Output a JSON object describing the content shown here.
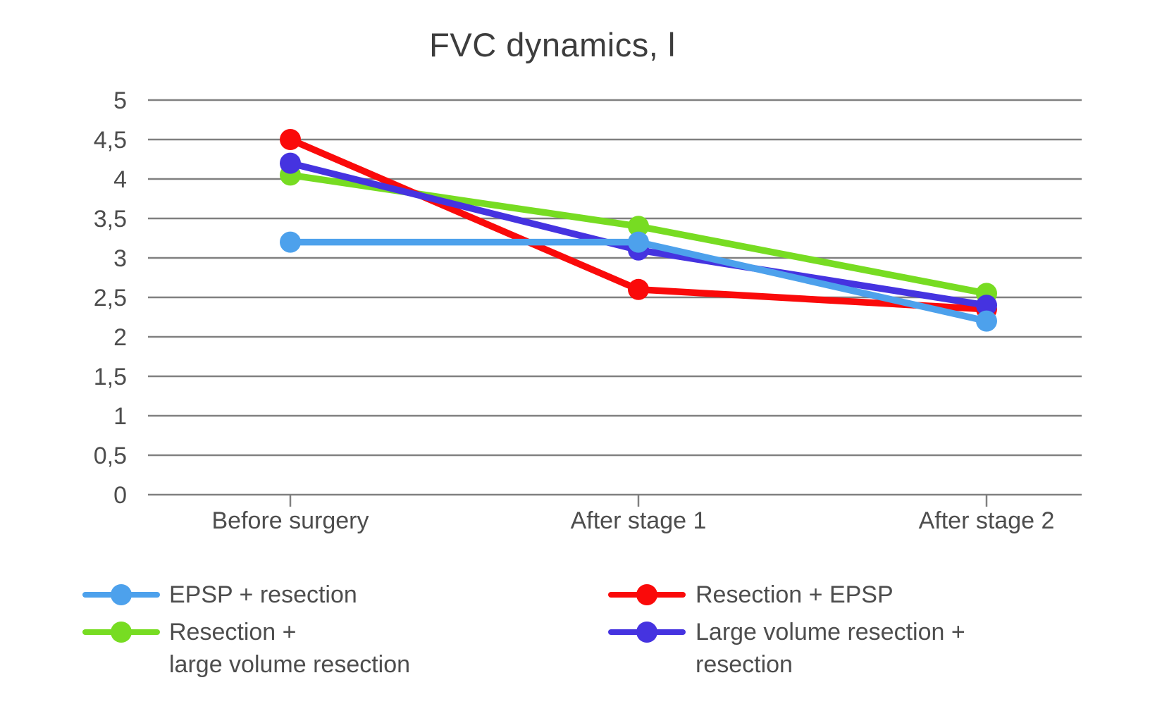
{
  "title": "FVC dynamics, l",
  "chart_data": {
    "type": "line",
    "title": "FVC dynamics, l",
    "xlabel": "",
    "ylabel": "",
    "categories": [
      "Before surgery",
      "After stage 1",
      "After stage 2"
    ],
    "series": [
      {
        "name": "EPSP + resection",
        "legend_lines": [
          "EPSP + resection"
        ],
        "color": "#4DA1EC",
        "values": [
          3.2,
          3.2,
          2.2
        ]
      },
      {
        "name": "Resection + EPSP",
        "legend_lines": [
          "Resection + EPSP"
        ],
        "color": "#FA0A0A",
        "values": [
          4.5,
          2.6,
          2.35
        ]
      },
      {
        "name": "Resection + large volume resection",
        "legend_lines": [
          "Resection +",
          "large volume resection"
        ],
        "color": "#77DC22",
        "values": [
          4.05,
          3.4,
          2.55
        ]
      },
      {
        "name": "Large volume resection + resection",
        "legend_lines": [
          "Large volume resection +",
          "resection"
        ],
        "color": "#4533E0",
        "values": [
          4.2,
          3.1,
          2.4
        ]
      }
    ],
    "ylim": [
      0,
      5
    ],
    "ytick_step": 0.5,
    "ytick_labels": [
      "0",
      "0,5",
      "1",
      "1,5",
      "2",
      "2,5",
      "3",
      "3,5",
      "4",
      "4,5",
      "5"
    ],
    "grid": true,
    "legend_position": "bottom",
    "legend_columns": [
      [
        0,
        2
      ],
      [
        1,
        3
      ]
    ],
    "z_order": [
      2,
      1,
      3,
      0
    ]
  },
  "colors": {
    "grid": "#808080",
    "axis_text": "#4D4D4D",
    "title_text": "#3D3D3D",
    "background": "#FFFFFF"
  }
}
